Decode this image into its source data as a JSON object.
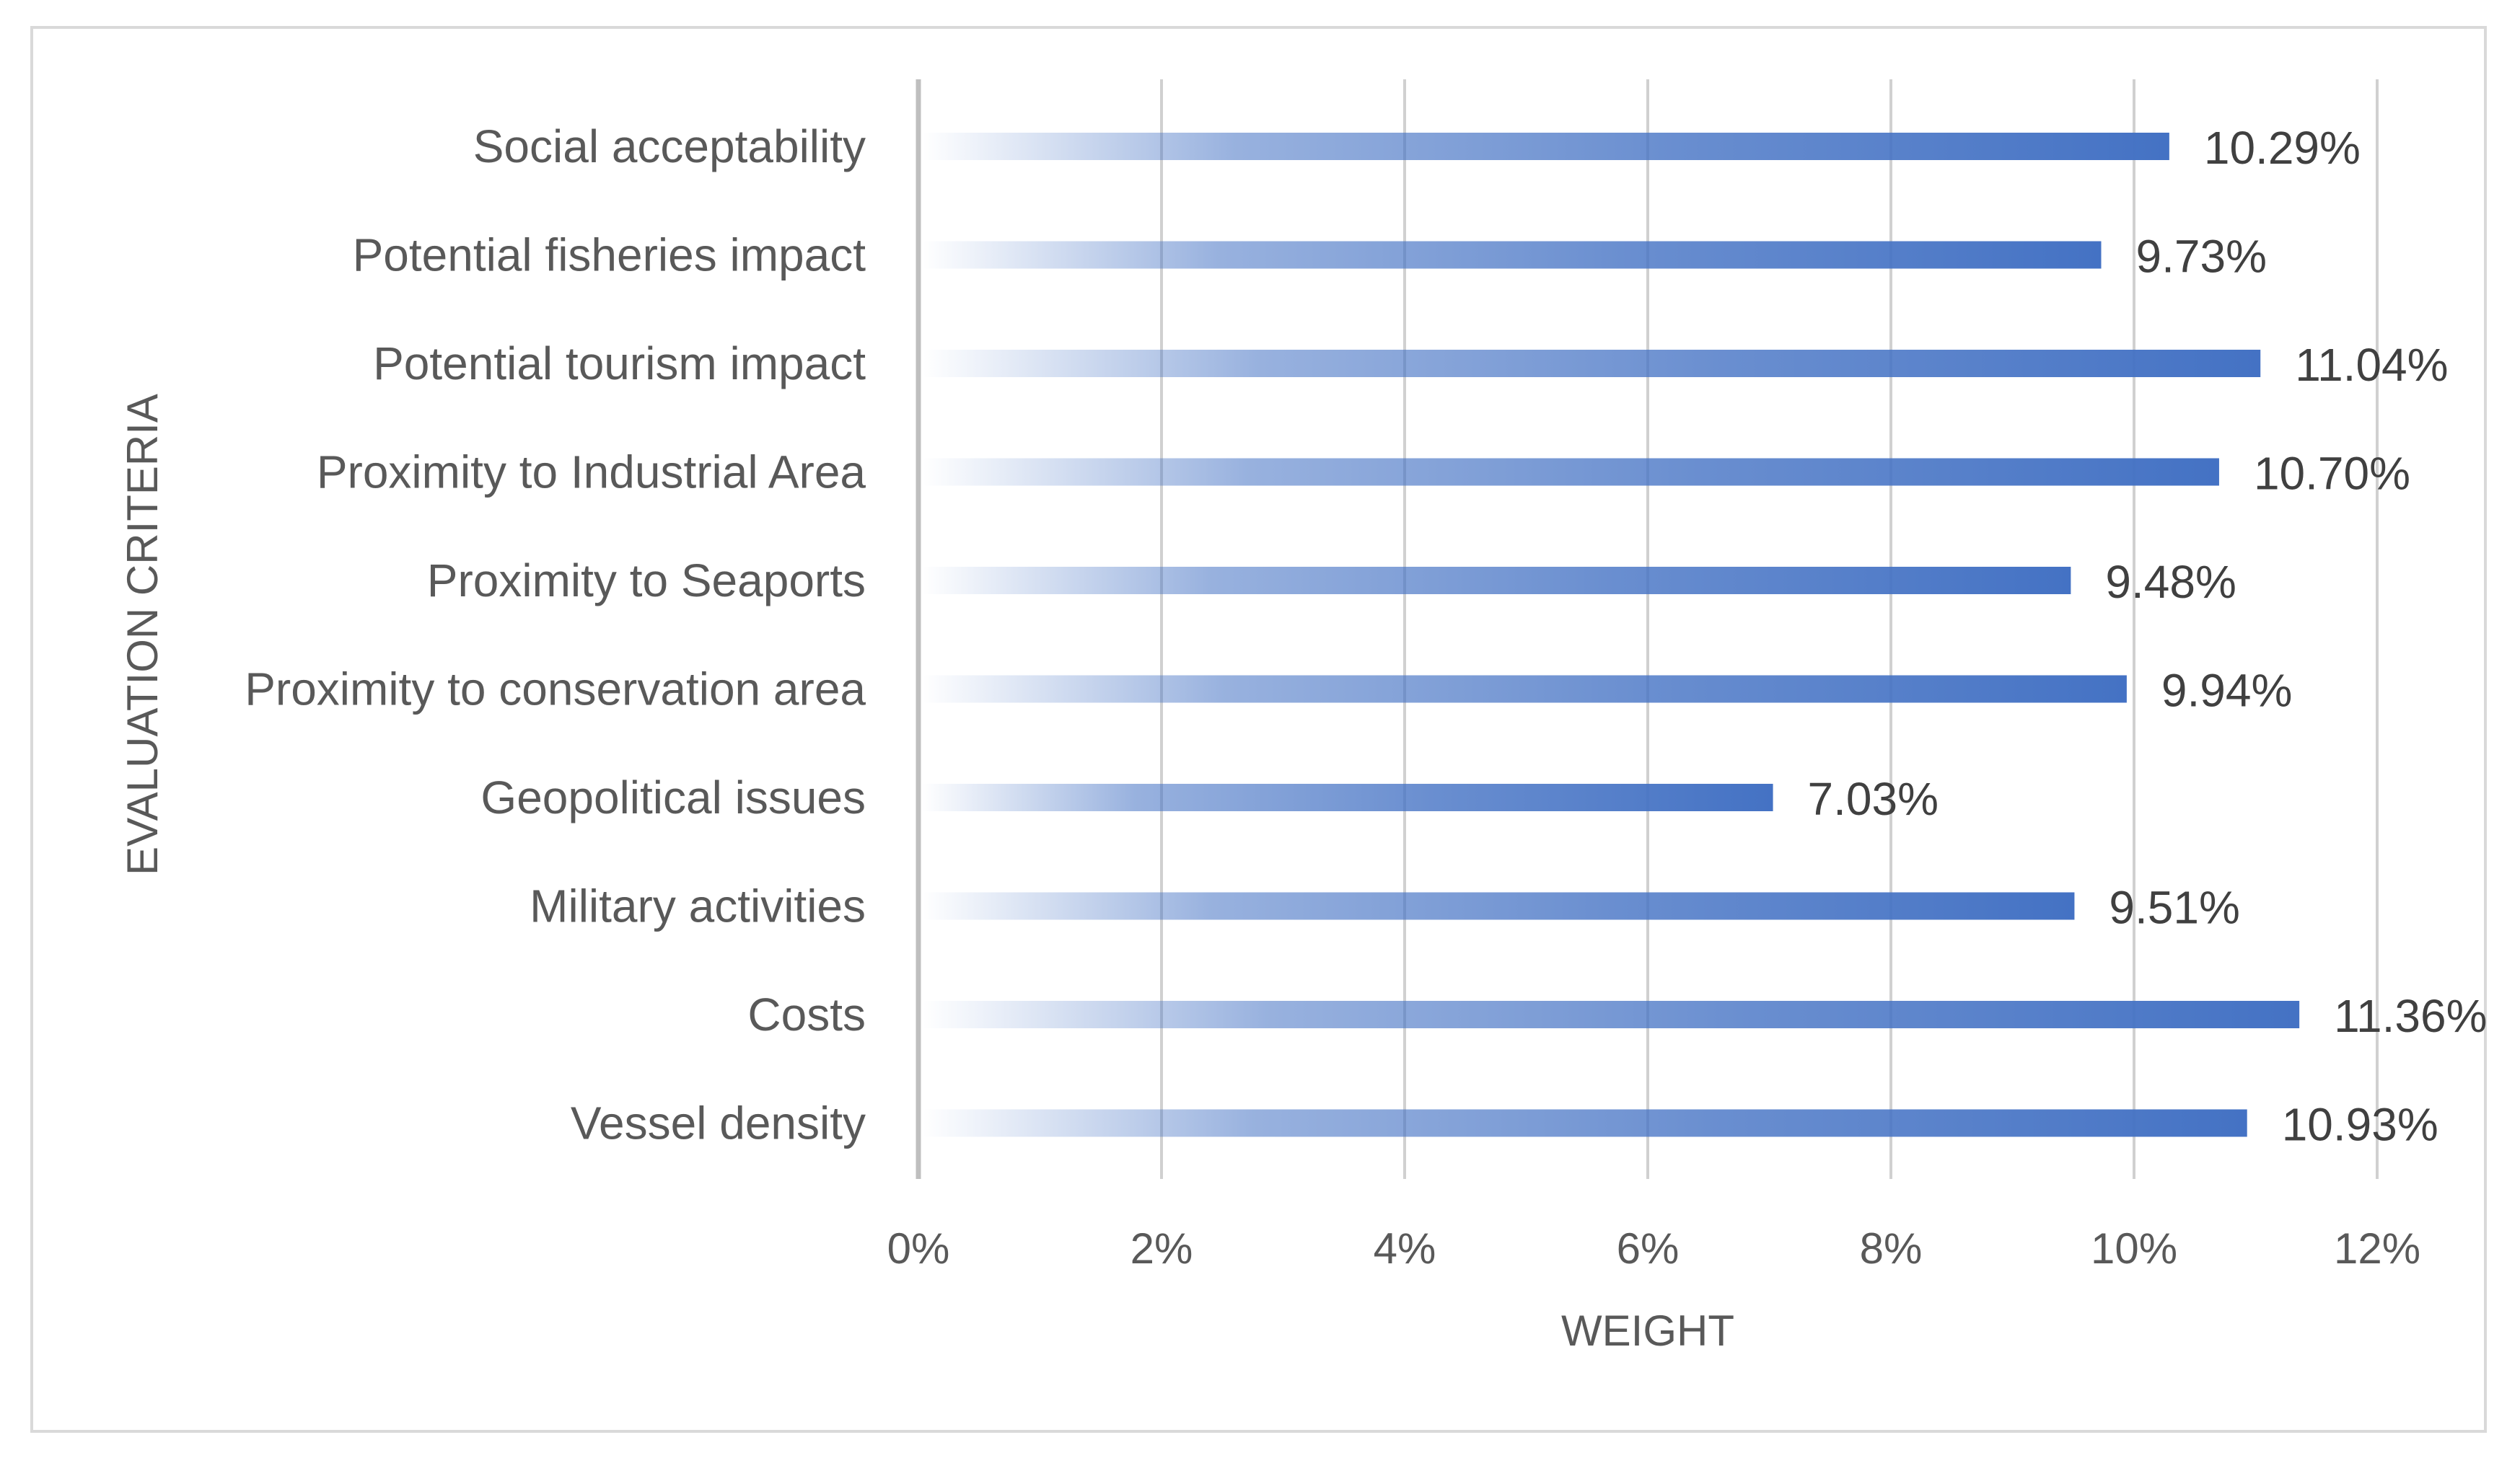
{
  "chart_data": {
    "type": "bar",
    "orientation": "horizontal",
    "title": "",
    "categories": [
      "Social acceptability",
      "Potential fisheries impact",
      "Potential tourism impact",
      "Proximity to Industrial Area",
      "Proximity to Seaports",
      "Proximity to conservation area",
      "Geopolitical issues",
      "Military activities",
      "Costs",
      "Vessel density"
    ],
    "values": [
      10.29,
      9.73,
      11.04,
      10.7,
      9.48,
      9.94,
      7.03,
      9.51,
      11.36,
      10.93
    ],
    "data_labels": [
      "10.29%",
      "9.73%",
      "11.04%",
      "10.70%",
      "9.48%",
      "9.94%",
      "7.03%",
      "9.51%",
      "11.36%",
      "10.93%"
    ],
    "xlabel": "WEIGHT",
    "ylabel": "EVALUATION CRITERIA",
    "xlim": [
      0,
      12
    ],
    "xticks": [
      0,
      2,
      4,
      6,
      8,
      10,
      12
    ],
    "xtick_labels": [
      "0%",
      "2%",
      "4%",
      "6%",
      "8%",
      "10%",
      "12%"
    ],
    "grid": true,
    "legend": "none",
    "bar_color": "#4472c4"
  }
}
